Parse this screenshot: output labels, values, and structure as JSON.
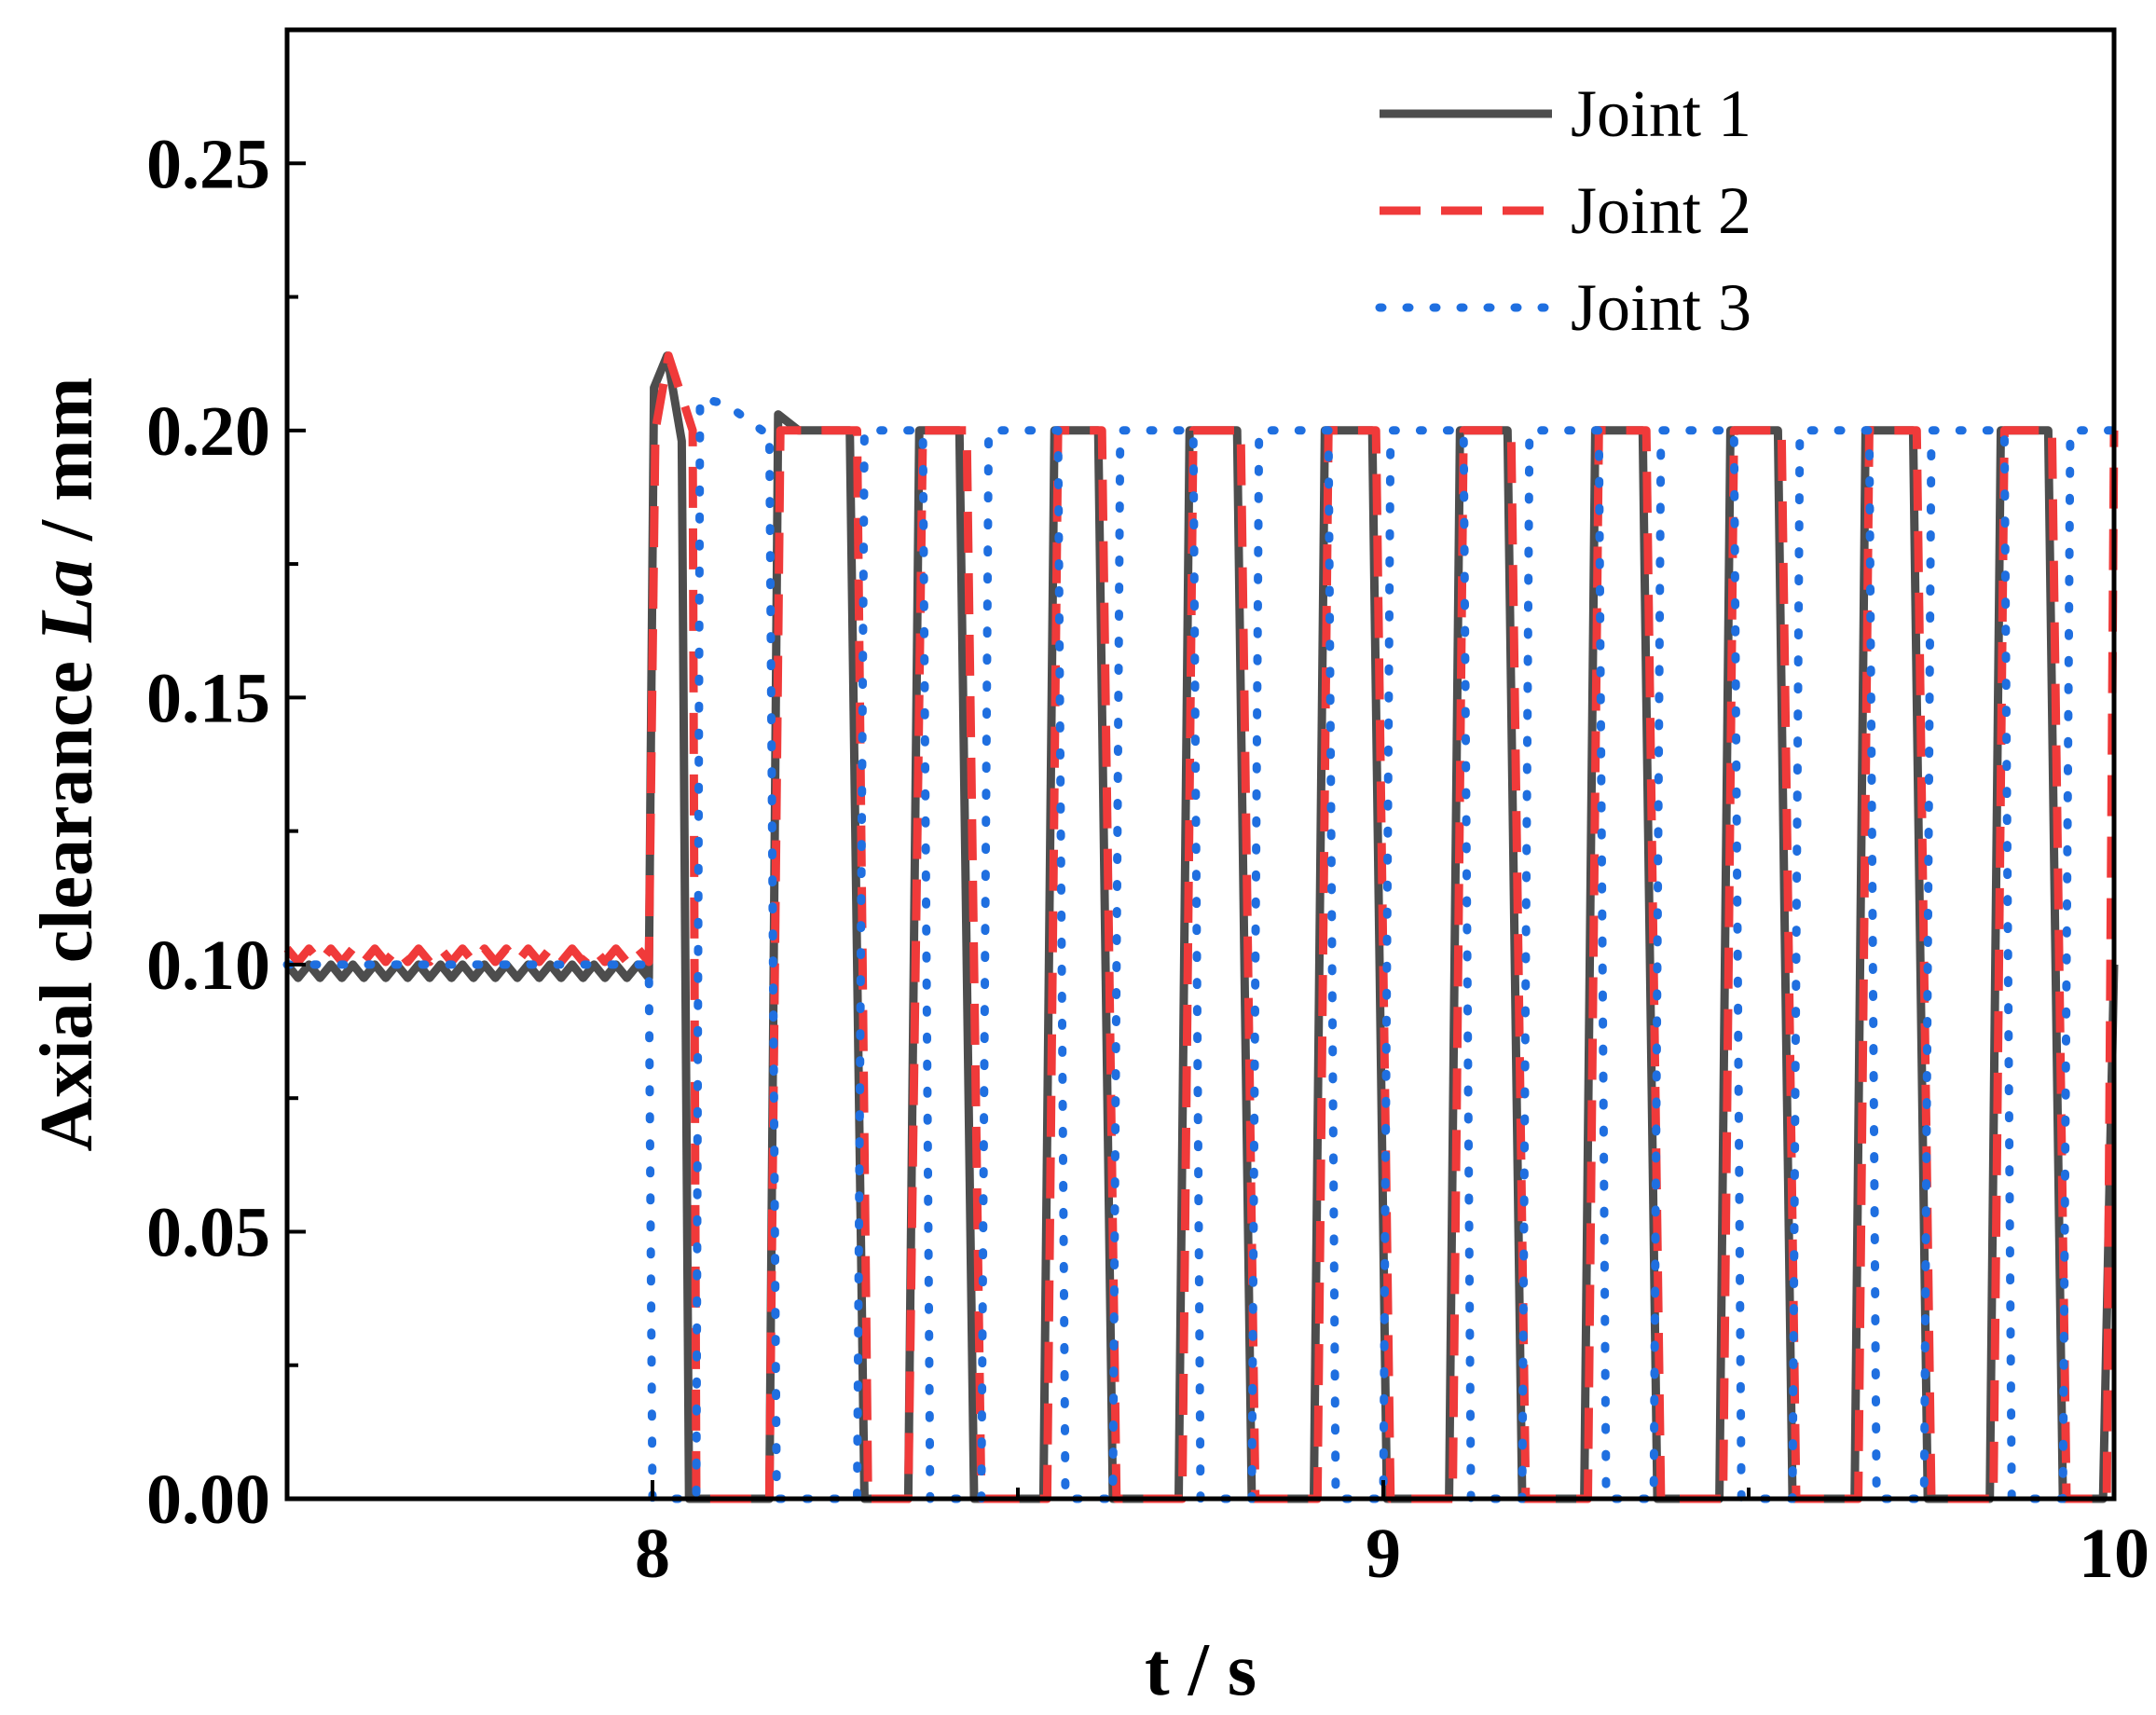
{
  "chart_data": {
    "type": "line",
    "xlabel": "t / s",
    "ylabel_prefix": "Axial clearance ",
    "ylabel_symbol": "La",
    "ylabel_suffix": " / mm",
    "xlim": [
      7.5,
      10
    ],
    "ylim": [
      0,
      0.275
    ],
    "xticks": [
      8,
      9,
      10
    ],
    "xtick_labels": [
      "8",
      "9",
      "10"
    ],
    "yticks": [
      0,
      0.05,
      0.1,
      0.15,
      0.2,
      0.25
    ],
    "ytick_labels": [
      "0.00",
      "0.05",
      "0.10",
      "0.15",
      "0.20",
      "0.25"
    ],
    "grid": false,
    "legend_position": "top-right",
    "series": [
      {
        "name": "Joint 1",
        "color": "#4d4d4d",
        "style": "solid",
        "points": [
          [
            7.5,
            0.1
          ],
          [
            7.515,
            0.0975
          ],
          [
            7.53,
            0.1
          ],
          [
            7.545,
            0.0975
          ],
          [
            7.56,
            0.1
          ],
          [
            7.575,
            0.0975
          ],
          [
            7.59,
            0.1
          ],
          [
            7.605,
            0.0975
          ],
          [
            7.62,
            0.1
          ],
          [
            7.635,
            0.0975
          ],
          [
            7.65,
            0.1
          ],
          [
            7.665,
            0.0975
          ],
          [
            7.68,
            0.1
          ],
          [
            7.695,
            0.0975
          ],
          [
            7.71,
            0.1
          ],
          [
            7.725,
            0.0975
          ],
          [
            7.74,
            0.1
          ],
          [
            7.755,
            0.0975
          ],
          [
            7.77,
            0.1
          ],
          [
            7.785,
            0.0975
          ],
          [
            7.8,
            0.1
          ],
          [
            7.815,
            0.0975
          ],
          [
            7.83,
            0.1
          ],
          [
            7.845,
            0.0975
          ],
          [
            7.86,
            0.1
          ],
          [
            7.875,
            0.0975
          ],
          [
            7.89,
            0.1
          ],
          [
            7.905,
            0.0975
          ],
          [
            7.92,
            0.1
          ],
          [
            7.935,
            0.0975
          ],
          [
            7.95,
            0.1
          ],
          [
            7.965,
            0.0975
          ],
          [
            7.98,
            0.1
          ],
          [
            7.995,
            0.0975
          ],
          [
            8.002,
            0.208
          ],
          [
            8.02,
            0.214
          ],
          [
            8.04,
            0.198
          ],
          [
            8.05,
            0
          ],
          [
            8.16,
            0
          ],
          [
            8.172,
            0.203
          ],
          [
            8.2,
            0.2
          ],
          [
            8.27,
            0.2
          ],
          [
            8.29,
            0
          ],
          [
            8.35,
            0
          ],
          [
            8.365,
            0.2
          ],
          [
            8.42,
            0.2
          ],
          [
            8.44,
            0
          ],
          [
            8.535,
            0
          ],
          [
            8.55,
            0.2
          ],
          [
            8.61,
            0.2
          ],
          [
            8.63,
            0
          ],
          [
            8.72,
            0
          ],
          [
            8.735,
            0.2
          ],
          [
            8.8,
            0.2
          ],
          [
            8.82,
            0
          ],
          [
            8.905,
            0
          ],
          [
            8.92,
            0.2
          ],
          [
            8.985,
            0.2
          ],
          [
            9.005,
            0
          ],
          [
            9.09,
            0
          ],
          [
            9.105,
            0.2
          ],
          [
            9.17,
            0.2
          ],
          [
            9.19,
            0
          ],
          [
            9.275,
            0
          ],
          [
            9.29,
            0.2
          ],
          [
            9.355,
            0.2
          ],
          [
            9.375,
            0
          ],
          [
            9.46,
            0
          ],
          [
            9.475,
            0.2
          ],
          [
            9.54,
            0.2
          ],
          [
            9.56,
            0
          ],
          [
            9.645,
            0
          ],
          [
            9.66,
            0.2
          ],
          [
            9.725,
            0.2
          ],
          [
            9.745,
            0
          ],
          [
            9.83,
            0
          ],
          [
            9.845,
            0.2
          ],
          [
            9.91,
            0.2
          ],
          [
            9.93,
            0
          ],
          [
            9.985,
            0
          ],
          [
            10,
            0.1
          ]
        ]
      },
      {
        "name": "Joint 2",
        "color": "#f03a3a",
        "style": "dashed",
        "points": [
          [
            7.5,
            0.103
          ],
          [
            7.515,
            0.1005
          ],
          [
            7.53,
            0.103
          ],
          [
            7.545,
            0.1005
          ],
          [
            7.56,
            0.103
          ],
          [
            7.575,
            0.1005
          ],
          [
            7.59,
            0.103
          ],
          [
            7.605,
            0.1005
          ],
          [
            7.62,
            0.103
          ],
          [
            7.635,
            0.1005
          ],
          [
            7.65,
            0.103
          ],
          [
            7.665,
            0.1005
          ],
          [
            7.68,
            0.103
          ],
          [
            7.695,
            0.1005
          ],
          [
            7.71,
            0.103
          ],
          [
            7.725,
            0.1005
          ],
          [
            7.74,
            0.103
          ],
          [
            7.755,
            0.1005
          ],
          [
            7.77,
            0.103
          ],
          [
            7.785,
            0.1005
          ],
          [
            7.8,
            0.103
          ],
          [
            7.815,
            0.1005
          ],
          [
            7.83,
            0.103
          ],
          [
            7.845,
            0.1005
          ],
          [
            7.86,
            0.103
          ],
          [
            7.875,
            0.1005
          ],
          [
            7.89,
            0.103
          ],
          [
            7.905,
            0.1005
          ],
          [
            7.92,
            0.103
          ],
          [
            7.935,
            0.1005
          ],
          [
            7.95,
            0.103
          ],
          [
            7.965,
            0.1005
          ],
          [
            7.98,
            0.103
          ],
          [
            7.995,
            0.1005
          ],
          [
            8.004,
            0.2
          ],
          [
            8.022,
            0.214
          ],
          [
            8.055,
            0.2
          ],
          [
            8.06,
            0
          ],
          [
            8.16,
            0
          ],
          [
            8.175,
            0.2
          ],
          [
            8.28,
            0.2
          ],
          [
            8.295,
            0
          ],
          [
            8.35,
            0
          ],
          [
            8.37,
            0.2
          ],
          [
            8.43,
            0.2
          ],
          [
            8.45,
            0
          ],
          [
            8.54,
            0
          ],
          [
            8.555,
            0.2
          ],
          [
            8.615,
            0.2
          ],
          [
            8.635,
            0
          ],
          [
            8.725,
            0
          ],
          [
            8.74,
            0.2
          ],
          [
            8.805,
            0.2
          ],
          [
            8.825,
            0
          ],
          [
            8.91,
            0
          ],
          [
            8.925,
            0.2
          ],
          [
            8.99,
            0.2
          ],
          [
            9.01,
            0
          ],
          [
            9.095,
            0
          ],
          [
            9.11,
            0.2
          ],
          [
            9.175,
            0.2
          ],
          [
            9.195,
            0
          ],
          [
            9.28,
            0
          ],
          [
            9.295,
            0.2
          ],
          [
            9.36,
            0.2
          ],
          [
            9.38,
            0
          ],
          [
            9.465,
            0
          ],
          [
            9.48,
            0.2
          ],
          [
            9.545,
            0.2
          ],
          [
            9.565,
            0
          ],
          [
            9.65,
            0
          ],
          [
            9.665,
            0.2
          ],
          [
            9.73,
            0.2
          ],
          [
            9.75,
            0
          ],
          [
            9.835,
            0
          ],
          [
            9.85,
            0.2
          ],
          [
            9.915,
            0.2
          ],
          [
            9.935,
            0
          ],
          [
            9.99,
            0
          ],
          [
            10,
            0.2
          ]
        ]
      },
      {
        "name": "Joint 3",
        "color": "#1f6fe0",
        "style": "dotted",
        "points": [
          [
            7.5,
            0.1
          ],
          [
            7.995,
            0.1
          ],
          [
            8.0,
            0
          ],
          [
            8.06,
            0
          ],
          [
            8.065,
            0.206
          ],
          [
            8.1,
            0.205
          ],
          [
            8.15,
            0.2
          ],
          [
            8.16,
            0.2
          ],
          [
            8.17,
            0
          ],
          [
            8.28,
            0
          ],
          [
            8.29,
            0.2
          ],
          [
            8.37,
            0.2
          ],
          [
            8.38,
            0
          ],
          [
            8.45,
            0
          ],
          [
            8.46,
            0.2
          ],
          [
            8.555,
            0.2
          ],
          [
            8.565,
            0
          ],
          [
            8.63,
            0
          ],
          [
            8.64,
            0.2
          ],
          [
            8.74,
            0.2
          ],
          [
            8.75,
            0
          ],
          [
            8.82,
            0
          ],
          [
            8.83,
            0.2
          ],
          [
            8.925,
            0.2
          ],
          [
            8.935,
            0
          ],
          [
            9.0,
            0
          ],
          [
            9.01,
            0.2
          ],
          [
            9.11,
            0.2
          ],
          [
            9.12,
            0
          ],
          [
            9.19,
            0
          ],
          [
            9.2,
            0.2
          ],
          [
            9.295,
            0.2
          ],
          [
            9.305,
            0
          ],
          [
            9.37,
            0
          ],
          [
            9.38,
            0.2
          ],
          [
            9.48,
            0.2
          ],
          [
            9.49,
            0
          ],
          [
            9.56,
            0
          ],
          [
            9.57,
            0.2
          ],
          [
            9.665,
            0.2
          ],
          [
            9.675,
            0
          ],
          [
            9.74,
            0
          ],
          [
            9.75,
            0.2
          ],
          [
            9.85,
            0.2
          ],
          [
            9.86,
            0
          ],
          [
            9.93,
            0
          ],
          [
            9.94,
            0.2
          ],
          [
            10,
            0.2
          ]
        ]
      }
    ]
  }
}
